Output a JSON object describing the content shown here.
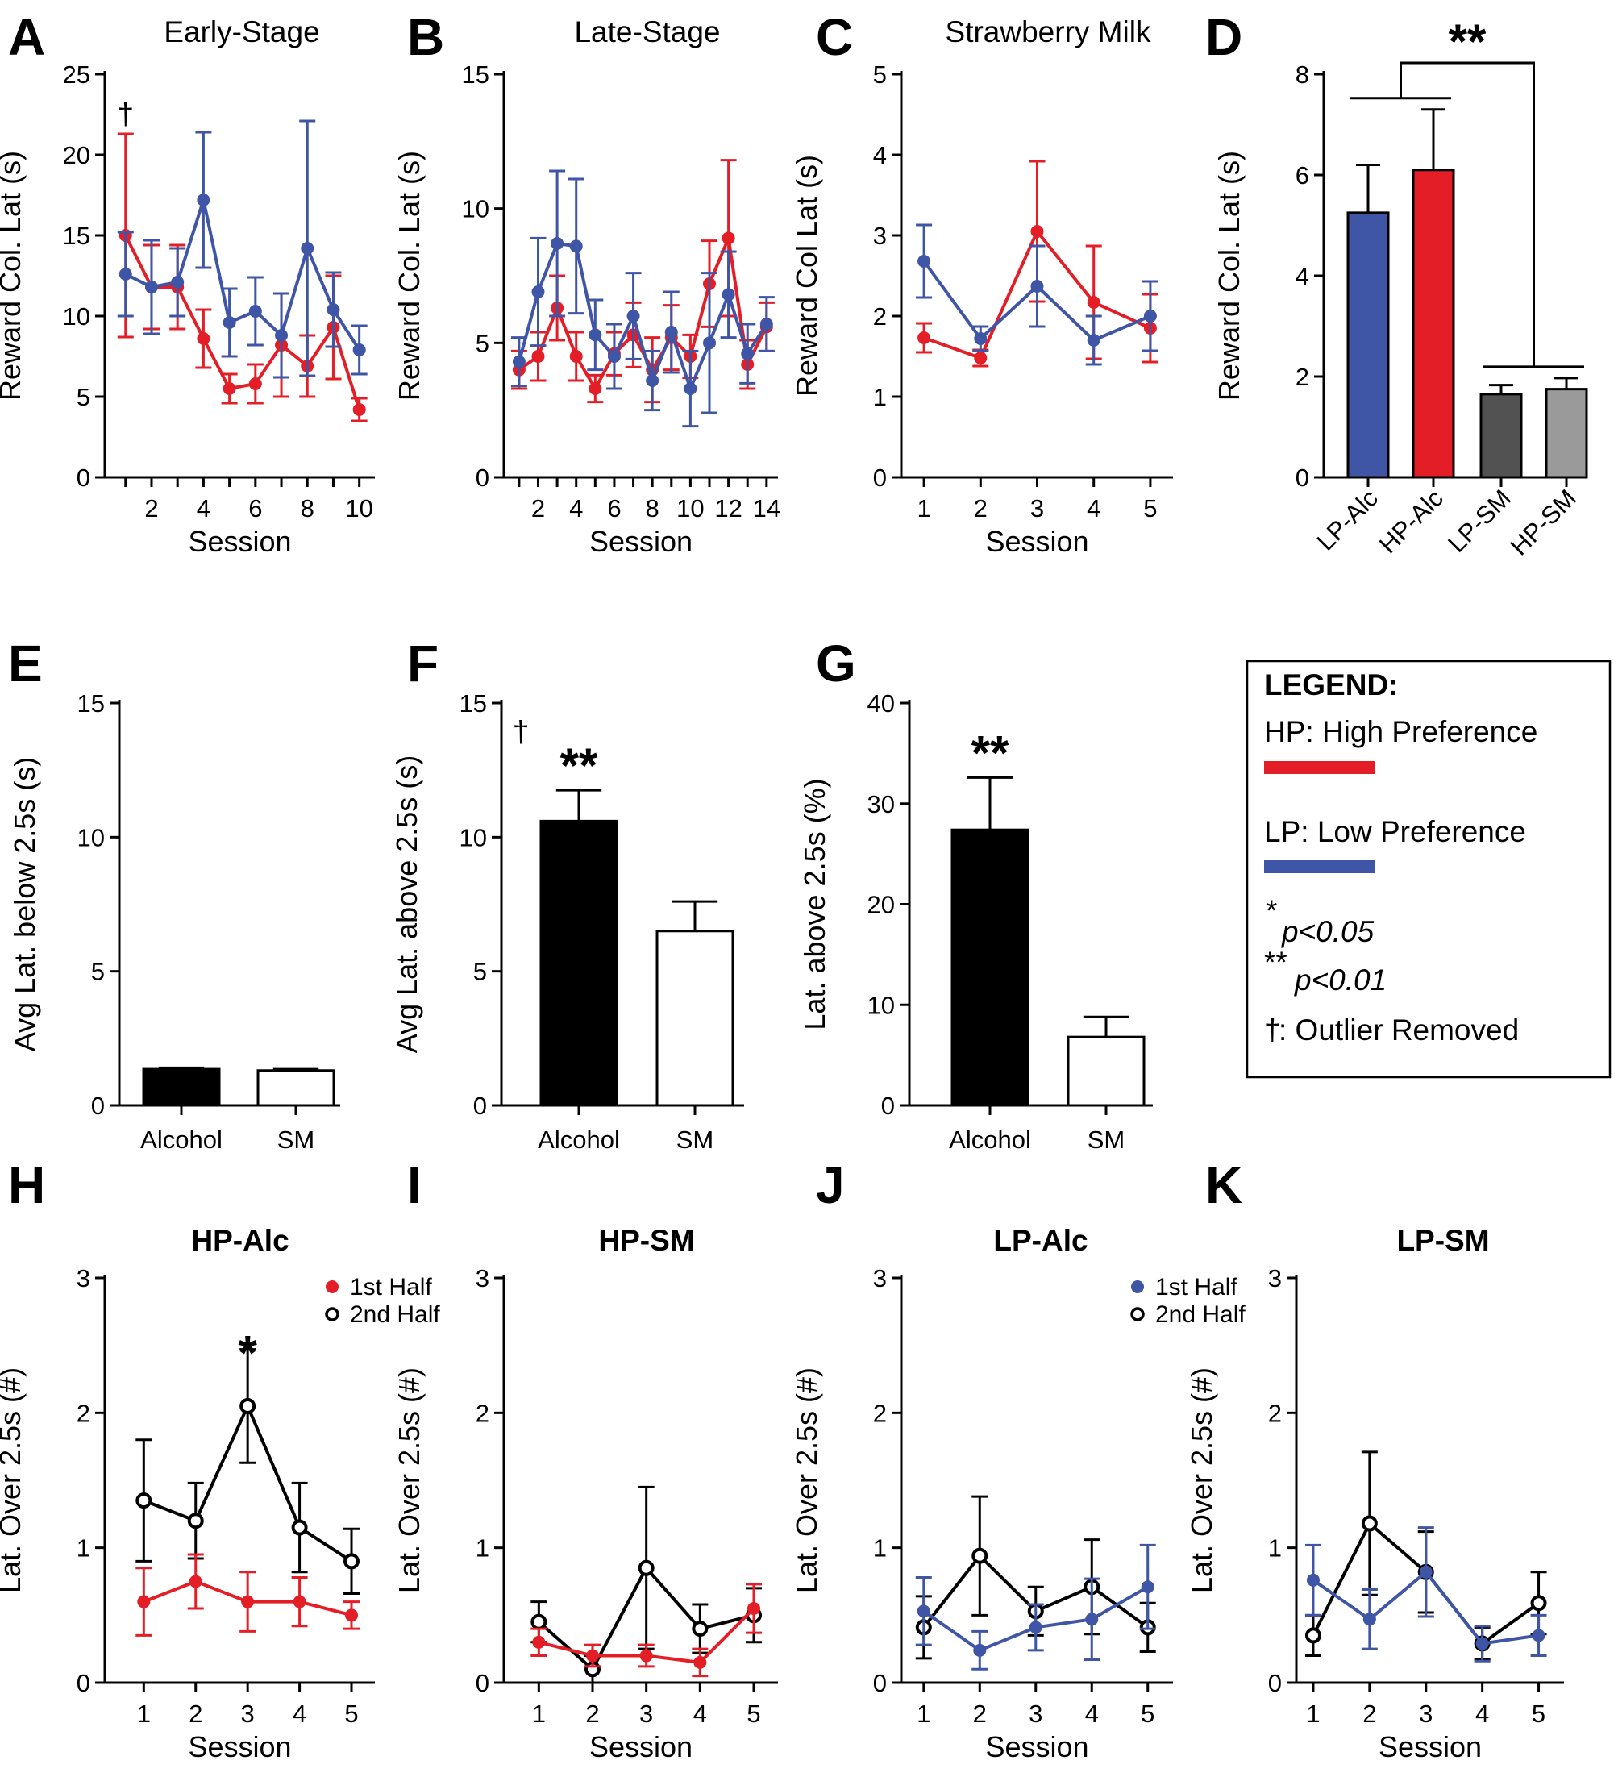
{
  "colors": {
    "hp": "#e41e26",
    "lp": "#3f55a5",
    "lp_sm": "#525252",
    "hp_sm": "#9a9a9a",
    "black": "#000000",
    "white": "#ffffff"
  },
  "legend": {
    "title": "LEGEND:",
    "hp_label": "HP: High Preference",
    "lp_label": "LP: Low Preference",
    "sig1_star": "*",
    "sig1_text": "p<0.05",
    "sig2_star": "**",
    "sig2_text": "p<0.01",
    "dagger": "†",
    "dagger_text": ": Outlier Removed"
  },
  "chart_data": [
    {
      "id": "A",
      "letter": "A",
      "type": "line",
      "title": "Early-Stage",
      "xlabel": "Session",
      "ylabel": "Reward Col. Lat (s)",
      "xlim": [
        0.2,
        10.6
      ],
      "ylim": [
        0,
        25
      ],
      "xticks": [
        2,
        4,
        6,
        8,
        10
      ],
      "yticks": [
        0,
        5,
        10,
        15,
        20,
        25
      ],
      "tickMinor": [
        1,
        3,
        5,
        7,
        9
      ],
      "annotations": [
        {
          "text": "†",
          "x": 1.0,
          "y": 22.5
        }
      ],
      "series": [
        {
          "name": "HP",
          "color": "hp",
          "x": [
            1,
            2,
            3,
            4,
            5,
            6,
            7,
            8,
            9,
            10
          ],
          "y": [
            15.0,
            11.8,
            11.8,
            8.6,
            5.5,
            5.8,
            8.2,
            6.9,
            9.3,
            4.2
          ],
          "err": [
            6.3,
            2.6,
            2.6,
            1.8,
            0.9,
            1.2,
            3.2,
            1.9,
            3.2,
            0.7
          ]
        },
        {
          "name": "LP",
          "color": "lp",
          "x": [
            1,
            2,
            3,
            4,
            5,
            6,
            7,
            8,
            9,
            10
          ],
          "y": [
            12.6,
            11.8,
            12.1,
            17.2,
            9.6,
            10.3,
            8.8,
            14.2,
            10.4,
            7.9
          ],
          "err": [
            2.6,
            2.9,
            2.1,
            4.2,
            2.1,
            2.1,
            2.6,
            7.9,
            2.3,
            1.5
          ]
        }
      ]
    },
    {
      "id": "B",
      "letter": "B",
      "type": "line",
      "title": "Late-Stage",
      "xlabel": "Session",
      "ylabel": "Reward Col. Lat (s)",
      "xlim": [
        0.2,
        14.6
      ],
      "ylim": [
        0,
        15
      ],
      "xticks": [
        2,
        4,
        6,
        8,
        10,
        12,
        14
      ],
      "yticks": [
        0,
        5,
        10,
        15
      ],
      "tickMinor": [
        1,
        3,
        5,
        7,
        9,
        11,
        13
      ],
      "series": [
        {
          "name": "HP",
          "color": "hp",
          "x": [
            1,
            2,
            3,
            4,
            5,
            6,
            7,
            8,
            9,
            10,
            11,
            12,
            13,
            14
          ],
          "y": [
            4.0,
            4.5,
            6.3,
            4.5,
            3.3,
            4.6,
            5.3,
            4.0,
            5.2,
            4.5,
            7.2,
            8.9,
            4.2,
            5.6
          ],
          "err": [
            0.7,
            0.9,
            1.2,
            0.9,
            0.5,
            0.8,
            1.2,
            1.2,
            1.2,
            0.8,
            1.6,
            2.9,
            0.9,
            0.9
          ]
        },
        {
          "name": "LP",
          "color": "lp",
          "x": [
            1,
            2,
            3,
            4,
            5,
            6,
            7,
            8,
            9,
            10,
            11,
            12,
            13,
            14
          ],
          "y": [
            4.3,
            6.9,
            8.7,
            8.6,
            5.3,
            4.5,
            6.0,
            3.6,
            5.4,
            3.3,
            5.0,
            6.8,
            4.6,
            5.7
          ],
          "err": [
            0.9,
            2.0,
            2.7,
            2.5,
            1.3,
            1.2,
            1.6,
            1.1,
            1.5,
            1.4,
            2.6,
            1.6,
            1.1,
            1.0
          ]
        }
      ]
    },
    {
      "id": "C",
      "letter": "C",
      "type": "line",
      "title": "Strawberry Milk",
      "xlabel": "Session",
      "ylabel": "Reward Col Lat (s)",
      "xlim": [
        0.6,
        5.4
      ],
      "ylim": [
        0,
        5
      ],
      "xticks": [
        1,
        2,
        3,
        4,
        5
      ],
      "yticks": [
        0,
        1,
        2,
        3,
        4,
        5
      ],
      "series": [
        {
          "name": "HP",
          "color": "hp",
          "x": [
            1,
            2,
            3,
            4,
            5
          ],
          "y": [
            1.73,
            1.48,
            3.05,
            2.17,
            1.85
          ],
          "err": [
            0.18,
            0.1,
            0.87,
            0.7,
            0.42
          ]
        },
        {
          "name": "LP",
          "color": "lp",
          "x": [
            1,
            2,
            3,
            4,
            5
          ],
          "y": [
            2.68,
            1.72,
            2.37,
            1.7,
            2.0
          ],
          "err": [
            0.45,
            0.15,
            0.5,
            0.3,
            0.43
          ]
        }
      ]
    },
    {
      "id": "D",
      "letter": "D",
      "type": "bar",
      "ylabel": "Reward Col. Lat (s)",
      "ylim": [
        0,
        8
      ],
      "yticks": [
        0,
        2,
        4,
        6,
        8
      ],
      "categories": [
        "LP-Alc",
        "HP-Alc",
        "LP-SM",
        "HP-SM"
      ],
      "values": [
        5.25,
        6.1,
        1.65,
        1.75
      ],
      "err": [
        0.95,
        1.2,
        0.18,
        0.22
      ],
      "colors": [
        "lp",
        "hp",
        "lp_sm",
        "hp_sm"
      ],
      "significance": "**"
    },
    {
      "id": "E",
      "letter": "E",
      "type": "bar",
      "ylabel": "Avg Lat. below 2.5s (s)",
      "ylim": [
        0,
        15
      ],
      "yticks": [
        0,
        5,
        10,
        15
      ],
      "categories": [
        "Alcohol",
        "SM"
      ],
      "values": [
        1.35,
        1.3
      ],
      "err": [
        0.05,
        0.05
      ],
      "fills": [
        "black",
        "white"
      ]
    },
    {
      "id": "F",
      "letter": "F",
      "type": "bar",
      "ylabel": "Avg Lat. above 2.5s (s)",
      "ylim": [
        0,
        15
      ],
      "yticks": [
        0,
        5,
        10,
        15
      ],
      "categories": [
        "Alcohol",
        "SM"
      ],
      "values": [
        10.6,
        6.5
      ],
      "err": [
        1.15,
        1.1
      ],
      "fills": [
        "black",
        "white"
      ],
      "significance": "**",
      "dagger": "†"
    },
    {
      "id": "G",
      "letter": "G",
      "type": "bar",
      "ylabel": "Lat. above 2.5s (%)",
      "ylim": [
        0,
        40
      ],
      "yticks": [
        0,
        10,
        20,
        30,
        40
      ],
      "categories": [
        "Alcohol",
        "SM"
      ],
      "values": [
        27.4,
        6.8
      ],
      "err": [
        5.2,
        2.0
      ],
      "fills": [
        "black",
        "white"
      ],
      "significance": "**"
    },
    {
      "id": "H",
      "letter": "H",
      "type": "line",
      "title": "HP-Alc",
      "boldTitle": true,
      "xlabel": "Session",
      "ylabel": "Lat. Over 2.5s (#)",
      "xlim": [
        0.25,
        5.45
      ],
      "ylim": [
        0,
        3
      ],
      "xticks": [
        1,
        2,
        3,
        4,
        5
      ],
      "yticks": [
        0,
        1,
        2,
        3
      ],
      "miniLegend": {
        "first": "1st Half",
        "second": "2nd Half",
        "color": "hp"
      },
      "annotations": [
        {
          "text": "*",
          "x": 3.0,
          "y": 2.55,
          "big": true
        }
      ],
      "series": [
        {
          "name": "2nd Half",
          "color": "black",
          "open": true,
          "x": [
            1,
            2,
            3,
            4,
            5
          ],
          "y": [
            1.35,
            1.2,
            2.05,
            1.15,
            0.9
          ],
          "err": [
            0.45,
            0.28,
            0.42,
            0.33,
            0.24
          ]
        },
        {
          "name": "1st Half",
          "color": "hp",
          "x": [
            1,
            2,
            3,
            4,
            5
          ],
          "y": [
            0.6,
            0.75,
            0.6,
            0.6,
            0.5
          ],
          "err": [
            0.25,
            0.2,
            0.22,
            0.18,
            0.1
          ]
        }
      ]
    },
    {
      "id": "I",
      "letter": "I",
      "type": "line",
      "title": "HP-SM",
      "boldTitle": true,
      "xlabel": "Session",
      "ylabel": "Lat. Over 2.5s (#)",
      "xlim": [
        0.35,
        5.45
      ],
      "ylim": [
        0,
        3
      ],
      "xticks": [
        1,
        2,
        3,
        4,
        5
      ],
      "yticks": [
        0,
        1,
        2,
        3
      ],
      "series": [
        {
          "name": "2nd Half",
          "color": "black",
          "open": true,
          "x": [
            1,
            2,
            3,
            4,
            5
          ],
          "y": [
            0.45,
            0.1,
            0.85,
            0.4,
            0.5
          ],
          "err": [
            0.15,
            0.1,
            0.6,
            0.18,
            0.2
          ]
        },
        {
          "name": "1st Half",
          "color": "hp",
          "x": [
            1,
            2,
            3,
            4,
            5
          ],
          "y": [
            0.3,
            0.2,
            0.2,
            0.15,
            0.55
          ],
          "err": [
            0.1,
            0.08,
            0.08,
            0.1,
            0.18
          ]
        }
      ]
    },
    {
      "id": "J",
      "letter": "J",
      "type": "line",
      "title": "LP-Alc",
      "boldTitle": true,
      "xlabel": "Session",
      "ylabel": "Lat. Over 2.5s (#)",
      "xlim": [
        0.6,
        5.45
      ],
      "ylim": [
        0,
        3
      ],
      "xticks": [
        1,
        2,
        3,
        4,
        5
      ],
      "yticks": [
        0,
        1,
        2,
        3
      ],
      "miniLegend": {
        "first": "1st Half",
        "second": "2nd Half",
        "color": "lp"
      },
      "series": [
        {
          "name": "2nd Half",
          "color": "black",
          "open": true,
          "x": [
            1,
            2,
            3,
            4,
            5
          ],
          "y": [
            0.41,
            0.94,
            0.53,
            0.71,
            0.41
          ],
          "err": [
            0.23,
            0.44,
            0.18,
            0.35,
            0.18
          ]
        },
        {
          "name": "1st Half",
          "color": "lp",
          "x": [
            1,
            2,
            3,
            4,
            5
          ],
          "y": [
            0.53,
            0.24,
            0.41,
            0.47,
            0.71
          ],
          "err": [
            0.25,
            0.14,
            0.17,
            0.3,
            0.31
          ]
        }
      ]
    },
    {
      "id": "K",
      "letter": "K",
      "type": "line",
      "title": "LP-SM",
      "boldTitle": true,
      "xlabel": "Session",
      "ylabel": "Lat. Over 2.5s (#)",
      "xlim": [
        0.7,
        5.45
      ],
      "ylim": [
        0,
        3
      ],
      "xticks": [
        1,
        2,
        3,
        4,
        5
      ],
      "yticks": [
        0,
        1,
        2,
        3
      ],
      "series": [
        {
          "name": "2nd Half",
          "color": "black",
          "open": true,
          "x": [
            1,
            2,
            3,
            4,
            5
          ],
          "y": [
            0.35,
            1.18,
            0.82,
            0.29,
            0.59
          ],
          "err": [
            0.15,
            0.53,
            0.3,
            0.12,
            0.23
          ]
        },
        {
          "name": "1st Half",
          "color": "lp",
          "x": [
            1,
            2,
            3,
            4,
            5
          ],
          "y": [
            0.76,
            0.47,
            0.82,
            0.29,
            0.35
          ],
          "err": [
            0.26,
            0.22,
            0.33,
            0.13,
            0.15
          ]
        }
      ]
    }
  ]
}
